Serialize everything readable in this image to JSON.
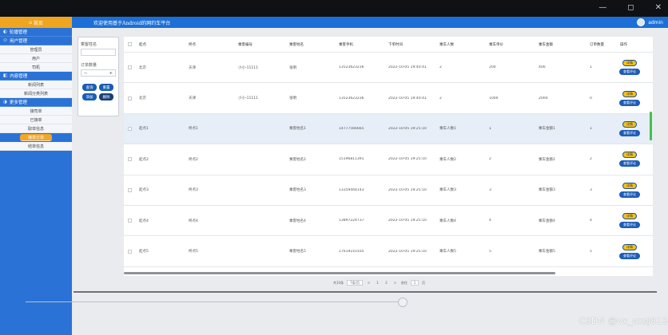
{
  "window": {
    "minimize_glyph": "—",
    "maximize_glyph": "◻",
    "close_glyph": "✕"
  },
  "header": {
    "home_label": "首页",
    "home_icon": "home-icon",
    "welcome": "欢迎使用基于Android的网约车平台",
    "user": "admin"
  },
  "sidebar": {
    "groups": [
      {
        "label": "轮播管理",
        "items": []
      },
      {
        "label": "用户管理",
        "items": [
          "管理员",
          "用户",
          "司机"
        ]
      },
      {
        "label": "内容管理",
        "items": [
          "新闻列表",
          "新闻分类列表"
        ]
      },
      {
        "label": "更多管理",
        "items": [
          "接司单",
          "已接单",
          "取单信息",
          "接单订单",
          "结单信息"
        ]
      }
    ],
    "active_item": "接单订单"
  },
  "filter": {
    "label1": "乘客姓名",
    "label2": "订单数量",
    "stepper_minus": "−",
    "stepper_plus": "+",
    "buttons": [
      "查询",
      "重置",
      "添加",
      "删除"
    ]
  },
  "table": {
    "headers": [
      "起点",
      "终点",
      "乘客编号",
      "乘客姓名",
      "乘客手机",
      "下单时间",
      "乘车人数",
      "乘车单价",
      "乘车金额",
      "订单数量",
      "操作"
    ],
    "rows": [
      [
        "北京",
        "天津",
        "小小-11111",
        "张明",
        "13523623236",
        "2022-10-05 19:40:41",
        "2",
        "200",
        "400",
        "1"
      ],
      [
        "北京",
        "天津",
        "小小-11111",
        "张明",
        "13523623236",
        "2022-10-05 19:40:41",
        "2",
        "1000",
        "2000",
        "0"
      ],
      [
        "起点1",
        "终点1",
        "",
        "乘客姓名1",
        "14777566665",
        "2022-10-05 19:25:10",
        "乘车人数1",
        "1",
        "乘车金额1",
        "1"
      ],
      [
        "起点2",
        "终点2",
        "",
        "乘客姓名2",
        "15196811391",
        "2022-10-05 19:25:10",
        "乘车人数2",
        "2",
        "乘车金额2",
        "2"
      ],
      [
        "起点3",
        "终点3",
        "",
        "乘客姓名3",
        "13359444143",
        "2022-10-05 19:25:10",
        "乘车人数3",
        "3",
        "乘车金额3",
        "3"
      ],
      [
        "起点4",
        "终点4",
        "",
        "乘客姓名4",
        "13897224737",
        "2022-10-05 19:25:10",
        "乘车人数4",
        "4",
        "乘车金额4",
        "4"
      ],
      [
        "起点5",
        "终点5",
        "",
        "乘客姓名5",
        "17619210105",
        "2022-10-05 19:25:10",
        "乘车人数5",
        "5",
        "乘车金额5",
        "5"
      ]
    ],
    "highlight_row": 2,
    "op_detail": "详情",
    "op_review": "查看评论"
  },
  "pagination": {
    "total": "共10条",
    "page_size": "7条/页",
    "prev": "<",
    "pages": [
      "1",
      "2"
    ],
    "current": "1",
    "next": ">",
    "goto_label": "前往",
    "goto_value": "1",
    "page_suffix": "页"
  },
  "watermark": "CSDN @vx_cxsj813",
  "colors": {
    "primary": "#1c6fd6",
    "accent": "#f0a521",
    "op_yellow": "#f3c318",
    "op_blue": "#1d5db8"
  }
}
